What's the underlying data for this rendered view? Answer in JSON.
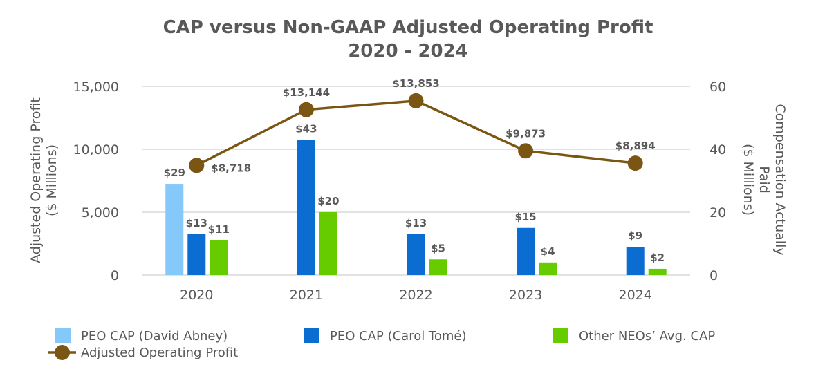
{
  "chart_data": {
    "type": "bar+line",
    "title_lines": [
      "CAP versus Non-GAAP Adjusted Operating Profit",
      "2020 - 2024"
    ],
    "categories": [
      "2020",
      "2021",
      "2022",
      "2023",
      "2024"
    ],
    "y_left": {
      "label_lines": [
        "Adjusted Operating Profit",
        "($ Millions)"
      ],
      "range": [
        0,
        15000
      ],
      "ticks": [
        0,
        5000,
        10000,
        15000
      ],
      "tick_labels": [
        "0",
        "5,000",
        "10,000",
        "15,000"
      ]
    },
    "y_right": {
      "label_lines": [
        "Compensation Actually",
        "Paid",
        "($ Millions)"
      ],
      "range": [
        0,
        60
      ],
      "ticks": [
        0,
        20,
        40,
        60
      ],
      "tick_labels": [
        "0",
        "20",
        "40",
        "60"
      ]
    },
    "bar_series": [
      {
        "name": "PEO CAP (David Abney)",
        "color": "#85C8FA",
        "values": [
          29,
          null,
          null,
          null,
          null
        ],
        "labels": [
          "$29",
          "",
          "",
          "",
          ""
        ]
      },
      {
        "name": "PEO CAP (Carol Tomé)",
        "color": "#0B6CD1",
        "values": [
          13,
          43,
          13,
          15,
          9
        ],
        "labels": [
          "$13",
          "$43",
          "$13",
          "$15",
          "$9"
        ]
      },
      {
        "name": "Other NEOs’ Avg. CAP",
        "color": "#66CC00",
        "values": [
          11,
          20,
          5,
          4,
          2
        ],
        "labels": [
          "$11",
          "$20",
          "$5",
          "$4",
          "$2"
        ]
      }
    ],
    "line_series": {
      "name": "Adjusted Operating Profit",
      "color": "#7A5612",
      "axis": "left",
      "values": [
        8718,
        13144,
        13853,
        9873,
        8894
      ],
      "labels": [
        "$8,718",
        "$13,144",
        "$13,853",
        "$9,873",
        "$8,894"
      ]
    },
    "gridlines": true,
    "legend_position": "bottom"
  }
}
